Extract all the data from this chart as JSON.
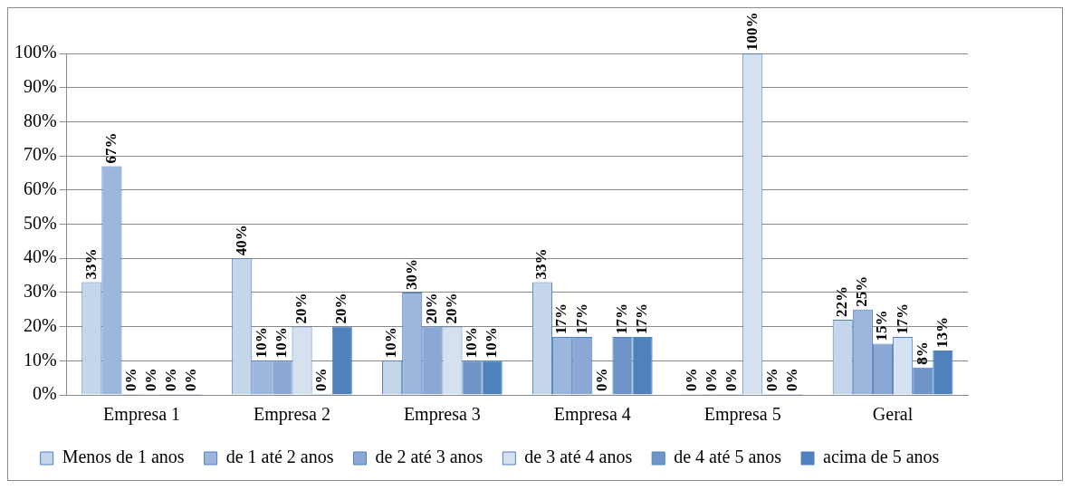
{
  "chart_data": {
    "type": "bar",
    "categories": [
      "Empresa 1",
      "Empresa 2",
      "Empresa 3",
      "Empresa 4",
      "Empresa 5",
      "Geral"
    ],
    "series": [
      {
        "name": "Menos de 1 anos",
        "color": "#c5d5ea",
        "values": [
          33,
          40,
          10,
          33,
          0,
          22
        ],
        "value_labels": [
          "33%",
          "40%",
          "10%",
          "33%",
          "0%",
          "22%"
        ]
      },
      {
        "name": "de 1 até 2 anos",
        "color": "#9db7dc",
        "values": [
          67,
          10,
          30,
          17,
          0,
          25
        ],
        "value_labels": [
          "67%",
          "10%",
          "30%",
          "17%",
          "0%",
          "25%"
        ]
      },
      {
        "name": "de 2 até 3 anos",
        "color": "#8aa8d3",
        "values": [
          0,
          10,
          20,
          17,
          0,
          15
        ],
        "value_labels": [
          "0%",
          "10%",
          "20%",
          "17%",
          "0%",
          "15%"
        ]
      },
      {
        "name": "de 3 até 4 anos",
        "color": "#d6e1f0",
        "values": [
          0,
          20,
          20,
          0,
          100,
          17
        ],
        "value_labels": [
          "0%",
          "20%",
          "20%",
          "0%",
          "100%",
          "17%"
        ]
      },
      {
        "name": "de 4 até 5 anos",
        "color": "#6f95c8",
        "values": [
          0,
          0,
          10,
          17,
          0,
          8
        ],
        "value_labels": [
          "0%",
          "0%",
          "10%",
          "17%",
          "0%",
          "8%"
        ]
      },
      {
        "name": "acima de 5 anos",
        "color": "#4f81bd",
        "values": [
          0,
          20,
          10,
          17,
          0,
          13
        ],
        "value_labels": [
          "0%",
          "20%",
          "10%",
          "17%",
          "0%",
          "13%"
        ]
      }
    ],
    "ylim": [
      0,
      100
    ],
    "yticks": [
      {
        "value": 0,
        "label": "0%"
      },
      {
        "value": 10,
        "label": "10%"
      },
      {
        "value": 20,
        "label": "20%"
      },
      {
        "value": 30,
        "label": "30%"
      },
      {
        "value": 40,
        "label": "40%"
      },
      {
        "value": 50,
        "label": "50%"
      },
      {
        "value": 60,
        "label": "60%"
      },
      {
        "value": 70,
        "label": "70%"
      },
      {
        "value": 80,
        "label": "80%"
      },
      {
        "value": 90,
        "label": "90%"
      },
      {
        "value": 100,
        "label": "100%"
      }
    ],
    "grid": "y",
    "legend": "bottom"
  }
}
